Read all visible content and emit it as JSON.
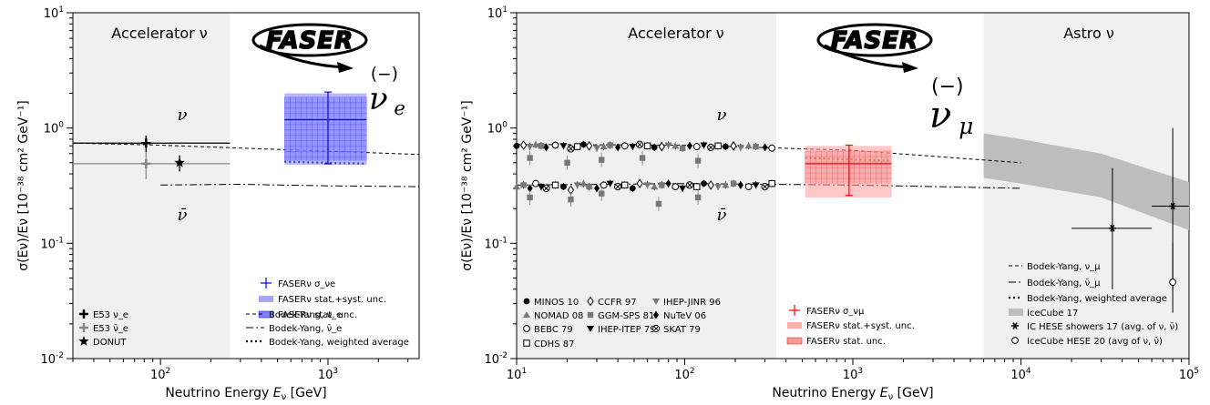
{
  "chart_data": [
    {
      "type": "scatter",
      "id": "left",
      "x_scale": "log",
      "y_scale": "log",
      "xlim": [
        30,
        3500
      ],
      "ylim": [
        0.01,
        10
      ],
      "xlabel": "Neutrino Energy E_ν [GeV]",
      "ylabel": "σ(E_ν)/E_ν [10^-38 cm^2 GeV^-1]",
      "x_ticklabels": [
        {
          "v": 100,
          "t": "10^2"
        },
        {
          "v": 1000,
          "t": "10^3"
        }
      ],
      "y_ticklabels": [
        {
          "v": 0.01,
          "t": "10^-2"
        },
        {
          "v": 0.1,
          "t": "10^-1"
        },
        {
          "v": 1,
          "t": "10^0"
        },
        {
          "v": 10,
          "t": "10^1"
        }
      ],
      "regions": [
        {
          "label": "Accelerator ν",
          "x": [
            30,
            260
          ],
          "color": "#f0f0f0"
        }
      ],
      "logo": "FASER",
      "flavor_label": "ν e",
      "nu_label": "ν",
      "nubar_label": "ν̄",
      "points": [
        {
          "series": "E53 ν_e",
          "x": 82,
          "y": 0.74,
          "xerr": [
            30,
            260
          ],
          "yerr": [
            0.62,
            0.86
          ],
          "color": "#000000",
          "marker": "plus"
        },
        {
          "series": "E53 ν̄_e",
          "x": 82,
          "y": 0.49,
          "xerr": [
            30,
            260
          ],
          "yerr": [
            0.36,
            0.62
          ],
          "color": "#888888",
          "marker": "plus"
        },
        {
          "series": "DONUT",
          "x": 130,
          "y": 0.5,
          "xerr": [
            125,
            135
          ],
          "yerr": [
            0.42,
            0.58
          ],
          "color": "#000000",
          "marker": "star"
        }
      ],
      "curves": [
        {
          "series": "Bodek-Yang, ν_e",
          "style": "dashed",
          "x": [
            30,
            100,
            300,
            1000,
            3500
          ],
          "y": [
            0.74,
            0.71,
            0.67,
            0.63,
            0.59
          ]
        },
        {
          "series": "Bodek-Yang, ν̄_e",
          "style": "dashdot",
          "x": [
            100,
            300,
            1000,
            3500
          ],
          "y": [
            0.32,
            0.325,
            0.315,
            0.31
          ]
        },
        {
          "series": "Bodek-Yang, weighted average",
          "style": "dotted",
          "x": [
            550,
            1700
          ],
          "y": [
            0.51,
            0.49
          ]
        }
      ],
      "faser": {
        "series": "FASERν σ_νe",
        "x": [
          550,
          1700
        ],
        "x_center": 1000,
        "y": 1.18,
        "yerr": [
          0.49,
          2.05
        ],
        "band_outer": [
          0.48,
          2.0
        ],
        "band_inner": [
          0.52,
          1.85
        ],
        "color": "#0000ff",
        "band_color": "#8080ff"
      },
      "legend_faser": [
        "FASERν σ_νe",
        "FASERν stat.+syst. unc.",
        "FASERν stat. unc."
      ],
      "legend_data": [
        "E53 ν_e",
        "E53 ν̄_e",
        "DONUT"
      ],
      "legend_curves": [
        "Bodek-Yang, ν_e",
        "Bodek-Yang, ν̄_e",
        "Bodek-Yang, weighted average"
      ]
    },
    {
      "type": "scatter",
      "id": "right",
      "x_scale": "log",
      "y_scale": "log",
      "xlim": [
        10,
        100000
      ],
      "ylim": [
        0.01,
        10
      ],
      "xlabel": "Neutrino Energy E_ν [GeV]",
      "ylabel": "σ(E_ν)/E_ν [10^-38 cm^2 GeV^-1]",
      "x_ticklabels": [
        {
          "v": 10,
          "t": "10^1"
        },
        {
          "v": 100,
          "t": "10^2"
        },
        {
          "v": 1000,
          "t": "10^3"
        },
        {
          "v": 10000,
          "t": "10^4"
        },
        {
          "v": 100000,
          "t": "10^5"
        }
      ],
      "y_ticklabels": [
        {
          "v": 0.01,
          "t": "10^-2"
        },
        {
          "v": 0.1,
          "t": "10^-1"
        },
        {
          "v": 1,
          "t": "10^0"
        },
        {
          "v": 10,
          "t": "10^1"
        }
      ],
      "regions": [
        {
          "label": "Accelerator ν",
          "x": [
            10,
            350
          ],
          "color": "#f0f0f0"
        },
        {
          "label": "Astro ν",
          "x": [
            6000,
            100000
          ],
          "color": "#f0f0f0"
        }
      ],
      "logo": "FASER",
      "flavor_label": "ν μ",
      "nu_label": "ν",
      "nubar_label": "ν̄",
      "nu_points_x": [
        10,
        11,
        12,
        13,
        14,
        15,
        17,
        19,
        21,
        23,
        25,
        27,
        30,
        33,
        36,
        40,
        44,
        49,
        54,
        60,
        66,
        73,
        80,
        88,
        97,
        107,
        118,
        130,
        143,
        158,
        175,
        195,
        215,
        240,
        265,
        300,
        330
      ],
      "nu_points_y": [
        0.7,
        0.71,
        0.69,
        0.72,
        0.7,
        0.68,
        0.71,
        0.7,
        0.66,
        0.69,
        0.72,
        0.7,
        0.67,
        0.69,
        0.71,
        0.68,
        0.7,
        0.69,
        0.72,
        0.7,
        0.68,
        0.69,
        0.71,
        0.7,
        0.67,
        0.7,
        0.69,
        0.71,
        0.68,
        0.7,
        0.69,
        0.7,
        0.68,
        0.7,
        0.69,
        0.68,
        0.67
      ],
      "nubar_points_x": [
        10,
        11,
        12,
        13,
        14,
        15,
        17,
        19,
        21,
        23,
        25,
        27,
        30,
        33,
        36,
        40,
        44,
        49,
        54,
        60,
        66,
        73,
        80,
        88,
        97,
        107,
        118,
        130,
        143,
        158,
        175,
        195,
        215,
        240,
        265,
        300,
        330
      ],
      "nubar_points_y": [
        0.31,
        0.32,
        0.3,
        0.33,
        0.31,
        0.3,
        0.32,
        0.31,
        0.29,
        0.32,
        0.33,
        0.31,
        0.3,
        0.32,
        0.33,
        0.31,
        0.32,
        0.3,
        0.33,
        0.32,
        0.31,
        0.32,
        0.33,
        0.31,
        0.3,
        0.32,
        0.31,
        0.33,
        0.32,
        0.31,
        0.32,
        0.33,
        0.32,
        0.31,
        0.32,
        0.31,
        0.33
      ],
      "scatter_outliers": [
        {
          "x": 12,
          "y": 0.55
        },
        {
          "x": 20,
          "y": 0.5
        },
        {
          "x": 32,
          "y": 0.53
        },
        {
          "x": 56,
          "y": 0.55
        },
        {
          "x": 120,
          "y": 0.52
        },
        {
          "x": 12,
          "y": 0.25
        },
        {
          "x": 21,
          "y": 0.24
        },
        {
          "x": 32,
          "y": 0.27
        },
        {
          "x": 70,
          "y": 0.22
        },
        {
          "x": 120,
          "y": 0.25
        }
      ],
      "curves": [
        {
          "series": "Bodek-Yang, ν_μ",
          "style": "dashed",
          "x": [
            10,
            100,
            1000,
            10000
          ],
          "y": [
            0.72,
            0.71,
            0.64,
            0.5
          ]
        },
        {
          "series": "Bodek-Yang, ν̄_μ",
          "style": "dashdot",
          "x": [
            10,
            100,
            1000,
            10000
          ],
          "y": [
            0.32,
            0.33,
            0.32,
            0.3
          ]
        },
        {
          "series": "Bodek-Yang, weighted average",
          "style": "dotted",
          "x": [
            520,
            1700
          ],
          "y": [
            0.55,
            0.52
          ]
        }
      ],
      "icecube_band": {
        "x": [
          6000,
          10000,
          30000,
          100000
        ],
        "y_low": [
          0.37,
          0.33,
          0.25,
          0.13
        ],
        "y_high": [
          0.9,
          0.8,
          0.6,
          0.34
        ],
        "color": "#bdbdbd"
      },
      "ic_hese_showers": {
        "x": 35000,
        "y": 0.135,
        "xerr": [
          20000,
          60000
        ],
        "yerr": [
          0.04,
          0.45
        ]
      },
      "ic_hese_20": {
        "x": 80000,
        "y": 0.21,
        "xerr": [
          60000,
          100000
        ],
        "yerr": [
          0.04,
          1.0
        ]
      },
      "ic_hese_20_b": {
        "x": 80000,
        "y": 0.046,
        "yerr": [
          0.025,
          0.1
        ]
      },
      "faser": {
        "series": "FASERν σ_νμ",
        "x": [
          520,
          1700
        ],
        "x_center": 950,
        "y": 0.49,
        "yerr": [
          0.26,
          0.71
        ],
        "band_outer": [
          0.25,
          0.7
        ],
        "band_inner": [
          0.33,
          0.63
        ],
        "color": "#ff0000",
        "band_color": "#ff9999"
      },
      "legend_data": [
        "MINOS 10",
        "CCFR 97",
        "IHEP-JINR 96",
        "NOMAD 08",
        "GGM-SPS 81",
        "NuTeV 06",
        "BEBC 79",
        "IHEP-ITEP 79",
        "SKAT 79",
        "CDHS 87"
      ],
      "legend_faser": [
        "FASERν σ_νμ",
        "FASERν stat.+syst. unc.",
        "FASERν stat. unc."
      ],
      "legend_curves": [
        "Bodek-Yang, ν_μ",
        "Bodek-Yang, ν̄_μ",
        "Bodek-Yang, weighted average",
        "IceCube 17",
        "IC HESE showers 17 (avg. of ν, ν̄)",
        "IceCube HESE 20 (avg of ν, ν̄)"
      ]
    }
  ]
}
